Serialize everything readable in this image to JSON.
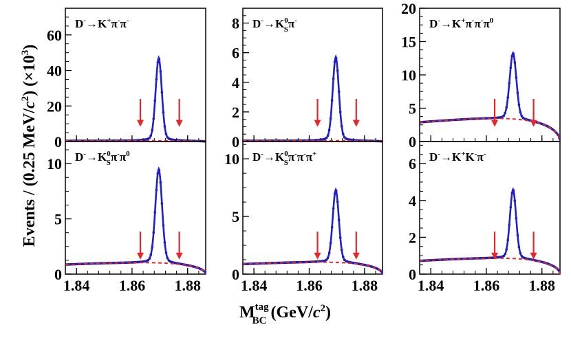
{
  "figure": {
    "ylabel_parts": [
      "Events / (0.25 MeV/",
      "c",
      "2",
      ") (×10",
      "3",
      ")"
    ],
    "xlabel_parts": [
      "M",
      "tag",
      "BC",
      " (GeV/",
      "c",
      "2",
      ")"
    ],
    "colors": {
      "fit": "#1f1fd0",
      "data": "#0b0b55",
      "background": "#e8262a",
      "arrow": "#e8262a",
      "frame": "#000000"
    }
  },
  "chart_data": [
    {
      "type": "line",
      "title": "D⁻→K⁺π⁻π⁻",
      "title_parts": [
        [
          "D",
          ""
        ],
        [
          "-",
          "sup"
        ],
        [
          "→K",
          ""
        ],
        [
          "+",
          "sup"
        ],
        [
          "π",
          ""
        ],
        [
          "-",
          "sup"
        ],
        [
          "π",
          ""
        ],
        [
          "-",
          "sup"
        ]
      ],
      "xlim": [
        1.836,
        1.8865
      ],
      "ylim": [
        0,
        75
      ],
      "yticks": [
        0,
        20,
        40,
        60
      ],
      "ytick_labels": [
        "0",
        "20",
        "40",
        "60"
      ],
      "xticks": [
        1.84,
        1.86,
        1.88
      ],
      "xtick_labels": [],
      "peak": 47,
      "bkg": 0.4,
      "width": 0.0011,
      "arrows": [
        1.863,
        1.877
      ]
    },
    {
      "type": "line",
      "title": "D⁻→K⁰Sπ⁻",
      "title_parts": [
        [
          "D",
          ""
        ],
        [
          "-",
          "sup"
        ],
        [
          "→K",
          ""
        ],
        [
          "0",
          "supsub",
          "S"
        ],
        [
          "π",
          ""
        ],
        [
          "-",
          "sup"
        ]
      ],
      "xlim": [
        1.836,
        1.8865
      ],
      "ylim": [
        0,
        9
      ],
      "yticks": [
        0,
        2,
        4,
        6,
        8
      ],
      "ytick_labels": [
        "0",
        "2",
        "4",
        "6",
        "8"
      ],
      "xticks": [
        1.84,
        1.86,
        1.88
      ],
      "xtick_labels": [],
      "peak": 5.7,
      "bkg": 0.05,
      "width": 0.0011,
      "arrows": [
        1.863,
        1.877
      ]
    },
    {
      "type": "line",
      "title": "D⁻→K⁺π⁻π⁻π⁰",
      "title_parts": [
        [
          "D",
          ""
        ],
        [
          "-",
          "sup"
        ],
        [
          "→K",
          ""
        ],
        [
          "+",
          "sup"
        ],
        [
          "π",
          ""
        ],
        [
          "-",
          "sup"
        ],
        [
          "π",
          ""
        ],
        [
          "-",
          "sup"
        ],
        [
          "π",
          ""
        ],
        [
          "0",
          "sup"
        ]
      ],
      "xlim": [
        1.836,
        1.8865
      ],
      "ylim": [
        0,
        20
      ],
      "yticks": [
        0,
        5,
        10,
        15,
        20
      ],
      "ytick_labels": [
        "0",
        "5",
        "10",
        "15",
        "20"
      ],
      "xticks": [
        1.84,
        1.86,
        1.88
      ],
      "xtick_labels": [],
      "peak": 12.9,
      "bkg": 3.0,
      "width": 0.0012,
      "arrows": [
        1.863,
        1.877
      ]
    },
    {
      "type": "line",
      "title": "D⁻→K⁰Sπ⁻π⁰",
      "title_parts": [
        [
          "D",
          ""
        ],
        [
          "-",
          "sup"
        ],
        [
          "→K",
          ""
        ],
        [
          "0",
          "supsub",
          "S"
        ],
        [
          "π",
          ""
        ],
        [
          "-",
          "sup"
        ],
        [
          "π",
          ""
        ],
        [
          "0",
          "sup"
        ]
      ],
      "xlim": [
        1.836,
        1.8865
      ],
      "ylim": [
        0,
        12
      ],
      "yticks": [
        0,
        5,
        10
      ],
      "ytick_labels": [
        "0",
        "5",
        "10"
      ],
      "xticks": [
        1.84,
        1.86,
        1.88
      ],
      "xtick_labels": [
        "1.84",
        "1.86",
        "1.88"
      ],
      "peak": 9.4,
      "bkg": 0.9,
      "width": 0.0012,
      "arrows": [
        1.863,
        1.877
      ]
    },
    {
      "type": "line",
      "title": "D⁻→K⁰Sπ⁻π⁻π⁺",
      "title_parts": [
        [
          "D",
          ""
        ],
        [
          "-",
          "sup"
        ],
        [
          "→K",
          ""
        ],
        [
          "0",
          "supsub",
          "S"
        ],
        [
          "π",
          ""
        ],
        [
          "-",
          "sup"
        ],
        [
          "π",
          ""
        ],
        [
          "-",
          "sup"
        ],
        [
          "π",
          ""
        ],
        [
          "+",
          "sup"
        ]
      ],
      "xlim": [
        1.836,
        1.8865
      ],
      "ylim": [
        0,
        11.5
      ],
      "yticks": [
        0,
        5,
        10
      ],
      "ytick_labels": [
        "0",
        "5",
        "10"
      ],
      "xticks": [
        1.84,
        1.86,
        1.88
      ],
      "xtick_labels": [
        "1.84",
        "1.86",
        "1.88"
      ],
      "peak": 7.2,
      "bkg": 0.9,
      "width": 0.0011,
      "arrows": [
        1.863,
        1.877
      ]
    },
    {
      "type": "line",
      "title": "D⁻→K⁺K⁻π⁻",
      "title_parts": [
        [
          "D",
          ""
        ],
        [
          "-",
          "sup"
        ],
        [
          "→K",
          ""
        ],
        [
          "+",
          "sup"
        ],
        [
          "K",
          ""
        ],
        [
          "-",
          "sup"
        ],
        [
          "π",
          ""
        ],
        [
          "-",
          "sup"
        ]
      ],
      "xlim": [
        1.836,
        1.8865
      ],
      "ylim": [
        0,
        7.2
      ],
      "yticks": [
        0,
        2,
        4,
        6
      ],
      "ytick_labels": [
        "0",
        "2",
        "4",
        "6"
      ],
      "xticks": [
        1.84,
        1.86,
        1.88
      ],
      "xtick_labels": [
        "1.84",
        "1.86",
        "1.88"
      ],
      "peak": 4.5,
      "bkg": 0.75,
      "width": 0.0011,
      "arrows": [
        1.863,
        1.877
      ]
    }
  ]
}
